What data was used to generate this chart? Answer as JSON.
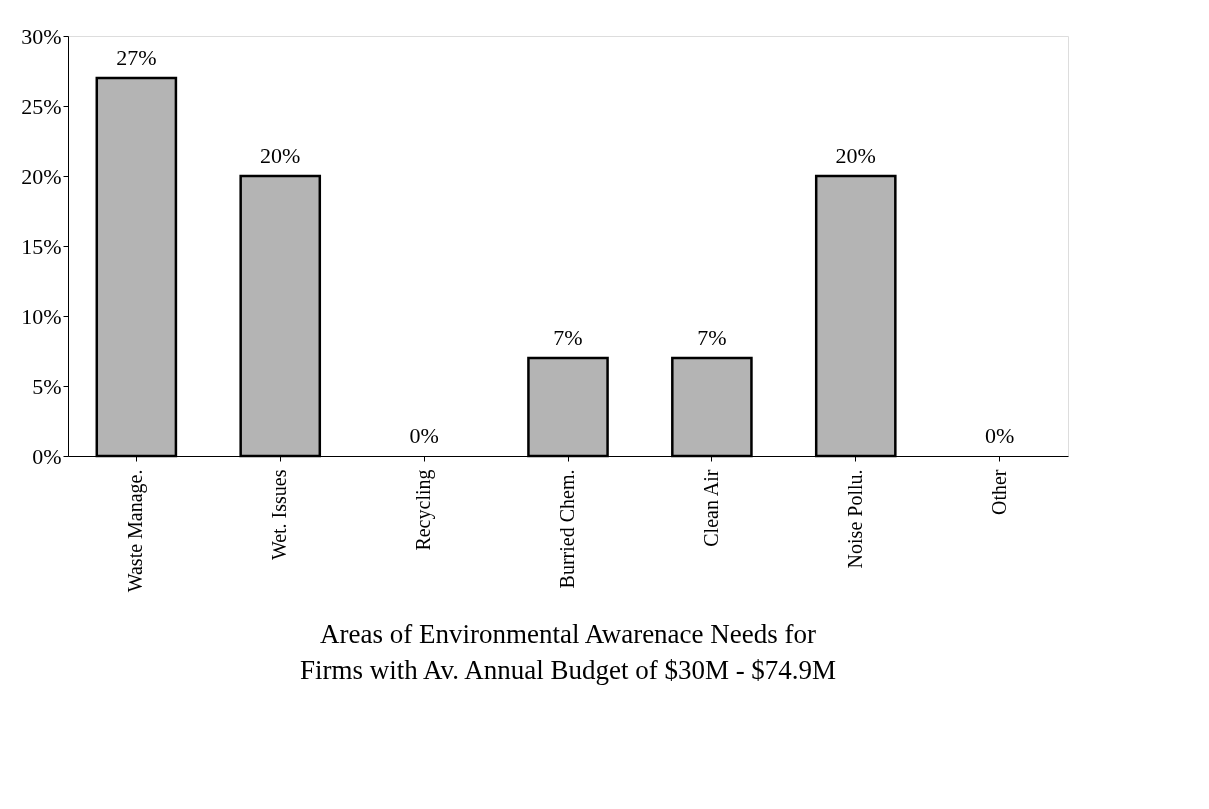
{
  "chart_data": {
    "type": "bar",
    "title": "Areas of Environmental Awarenace Needs for Firms with Av. Annual Budget of $30M - $74.9M",
    "categories": [
      "Waste Manage.",
      "Wet. Issues",
      "Recycling",
      "Burried Chem.",
      "Clean Air",
      "Noise Pollu.",
      "Other"
    ],
    "values": [
      27,
      20,
      0,
      7,
      7,
      20,
      0
    ],
    "value_labels": [
      "27%",
      "20%",
      "0%",
      "7%",
      "7%",
      "20%",
      "0%"
    ],
    "color": "#b4b4b4",
    "ylim": [
      0,
      30
    ],
    "yticks": [
      {
        "value": 0,
        "label": "0%"
      },
      {
        "value": 5,
        "label": "5%"
      },
      {
        "value": 10,
        "label": "10%"
      },
      {
        "value": 15,
        "label": "15%"
      },
      {
        "value": 20,
        "label": "20%"
      },
      {
        "value": 25,
        "label": "25%"
      },
      {
        "value": 30,
        "label": "30%"
      }
    ],
    "grid": false
  }
}
